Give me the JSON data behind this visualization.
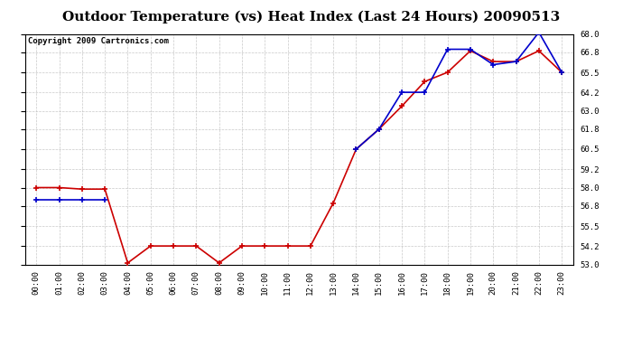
{
  "title": "Outdoor Temperature (vs) Heat Index (Last 24 Hours) 20090513",
  "copyright_text": "Copyright 2009 Cartronics.com",
  "x_labels": [
    "00:00",
    "01:00",
    "02:00",
    "03:00",
    "04:00",
    "05:00",
    "06:00",
    "07:00",
    "08:00",
    "09:00",
    "10:00",
    "11:00",
    "12:00",
    "13:00",
    "14:00",
    "15:00",
    "16:00",
    "17:00",
    "18:00",
    "19:00",
    "20:00",
    "21:00",
    "22:00",
    "23:00"
  ],
  "temp_red": [
    58.0,
    58.0,
    57.9,
    57.9,
    53.1,
    54.2,
    54.2,
    54.2,
    53.1,
    54.2,
    54.2,
    54.2,
    54.2,
    57.0,
    60.5,
    61.8,
    63.3,
    64.9,
    65.5,
    66.9,
    66.2,
    66.2,
    66.9,
    65.5
  ],
  "heat_blue": [
    57.2,
    57.2,
    57.2,
    57.2,
    null,
    null,
    null,
    null,
    null,
    null,
    null,
    null,
    null,
    null,
    60.5,
    61.8,
    64.2,
    64.2,
    67.0,
    67.0,
    66.0,
    66.2,
    68.1,
    65.5
  ],
  "ylim": [
    53.0,
    68.0
  ],
  "yticks": [
    53.0,
    54.2,
    55.5,
    56.8,
    58.0,
    59.2,
    60.5,
    61.8,
    63.0,
    64.2,
    65.5,
    66.8,
    68.0
  ],
  "red_color": "#cc0000",
  "blue_color": "#0000cc",
  "grid_color": "#bbbbbb",
  "bg_color": "#ffffff",
  "plot_bg_color": "#ffffff",
  "title_fontsize": 11,
  "copyright_fontsize": 6.5
}
